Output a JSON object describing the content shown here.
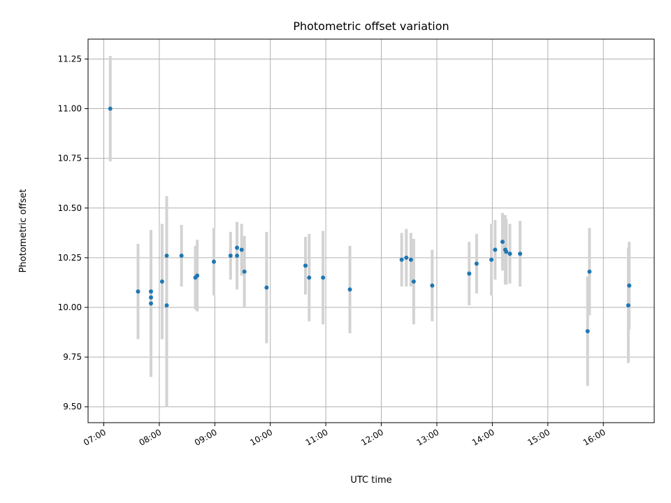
{
  "chart_data": {
    "type": "scatter",
    "title": "Photometric offset variation",
    "xlabel": "UTC time",
    "ylabel": "Photometric offset",
    "x_ticks": [
      "07:00",
      "08:00",
      "09:00",
      "10:00",
      "11:00",
      "12:00",
      "13:00",
      "14:00",
      "15:00",
      "16:00"
    ],
    "y_ticks": [
      "9.50",
      "9.75",
      "10.00",
      "10.25",
      "10.50",
      "10.75",
      "11.00",
      "11.25"
    ],
    "xlim": [
      "06:43",
      "16:55"
    ],
    "ylim": [
      9.42,
      11.35
    ],
    "grid": true,
    "colors": {
      "point": "#1f77b4",
      "errorbar": "#d3d3d3",
      "grid": "#b0b0b0"
    },
    "points": [
      {
        "x": "07:07",
        "y": 11.0,
        "err": 0.265
      },
      {
        "x": "07:37",
        "y": 10.08,
        "err": 0.24
      },
      {
        "x": "07:51",
        "y": 10.08,
        "err": 0.3
      },
      {
        "x": "07:51",
        "y": 10.05,
        "err": 0.26
      },
      {
        "x": "07:51",
        "y": 10.02,
        "err": 0.37
      },
      {
        "x": "08:03",
        "y": 10.13,
        "err": 0.29
      },
      {
        "x": "08:08",
        "y": 10.26,
        "err": 0.3
      },
      {
        "x": "08:08",
        "y": 10.01,
        "err": 0.51
      },
      {
        "x": "08:24",
        "y": 10.26,
        "err": 0.155
      },
      {
        "x": "08:39",
        "y": 10.15,
        "err": 0.16
      },
      {
        "x": "08:41",
        "y": 10.16,
        "err": 0.18
      },
      {
        "x": "08:59",
        "y": 10.23,
        "err": 0.17
      },
      {
        "x": "09:17",
        "y": 10.26,
        "err": 0.12
      },
      {
        "x": "09:24",
        "y": 10.26,
        "err": 0.17
      },
      {
        "x": "09:24",
        "y": 10.3,
        "err": 0.13
      },
      {
        "x": "09:29",
        "y": 10.29,
        "err": 0.13
      },
      {
        "x": "09:32",
        "y": 10.18,
        "err": 0.18
      },
      {
        "x": "09:56",
        "y": 10.1,
        "err": 0.28
      },
      {
        "x": "10:38",
        "y": 10.21,
        "err": 0.145
      },
      {
        "x": "10:42",
        "y": 10.15,
        "err": 0.22
      },
      {
        "x": "10:57",
        "y": 10.15,
        "err": 0.235
      },
      {
        "x": "11:26",
        "y": 10.09,
        "err": 0.22
      },
      {
        "x": "12:22",
        "y": 10.24,
        "err": 0.135
      },
      {
        "x": "12:27",
        "y": 10.25,
        "err": 0.145
      },
      {
        "x": "12:32",
        "y": 10.24,
        "err": 0.135
      },
      {
        "x": "12:35",
        "y": 10.13,
        "err": 0.215
      },
      {
        "x": "12:55",
        "y": 10.11,
        "err": 0.18
      },
      {
        "x": "13:35",
        "y": 10.17,
        "err": 0.16
      },
      {
        "x": "13:43",
        "y": 10.22,
        "err": 0.15
      },
      {
        "x": "13:59",
        "y": 10.24,
        "err": 0.18
      },
      {
        "x": "14:03",
        "y": 10.29,
        "err": 0.15
      },
      {
        "x": "14:11",
        "y": 10.33,
        "err": 0.145
      },
      {
        "x": "14:14",
        "y": 10.29,
        "err": 0.175
      },
      {
        "x": "14:15",
        "y": 10.28,
        "err": 0.165
      },
      {
        "x": "14:19",
        "y": 10.27,
        "err": 0.15
      },
      {
        "x": "14:30",
        "y": 10.27,
        "err": 0.165
      },
      {
        "x": "15:43",
        "y": 9.88,
        "err": 0.275
      },
      {
        "x": "15:45",
        "y": 10.18,
        "err": 0.22
      },
      {
        "x": "16:27",
        "y": 10.01,
        "err": 0.29
      },
      {
        "x": "16:28",
        "y": 10.11,
        "err": 0.22
      }
    ]
  }
}
